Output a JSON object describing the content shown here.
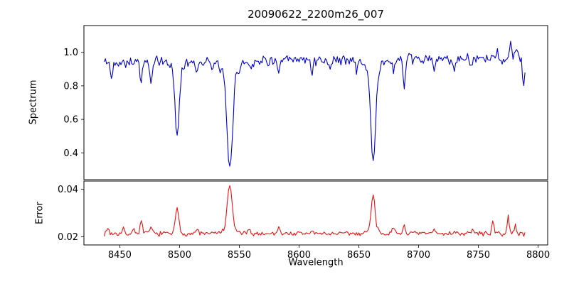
{
  "figure": {
    "title": "20090622_2200m26_007"
  },
  "chart_data": [
    {
      "type": "line",
      "role": "spectrum",
      "title": "20090622_2200m26_007",
      "ylabel": "Spectrum",
      "line_color": "#0000cc",
      "legend": "none",
      "grid": false,
      "xlim": [
        8420,
        8808
      ],
      "ylim": [
        0.24,
        1.16
      ],
      "ytick_values": [
        0.4,
        0.6,
        0.8,
        1.0
      ],
      "ytick_labels": [
        "0.4",
        "0.6",
        "0.8",
        "1.0"
      ],
      "x_start": 8437,
      "x_end": 8789,
      "x_step": 1.0,
      "seed": 42,
      "continuum": 0.952,
      "slope": 6e-05,
      "slope_ref": 8600,
      "noise_amplitude": 0.038,
      "absorption_lines": [
        {
          "c": 8498,
          "d": 0.4,
          "w": 1.6
        },
        {
          "c": 8498,
          "d": 0.06,
          "w": 4.0
        },
        {
          "c": 8542,
          "d": 0.55,
          "w": 2.2
        },
        {
          "c": 8542,
          "d": 0.1,
          "w": 6.0
        },
        {
          "c": 8662,
          "d": 0.52,
          "w": 1.9
        },
        {
          "c": 8662,
          "d": 0.09,
          "w": 5.0
        },
        {
          "c": 8443,
          "d": 0.1,
          "w": 1.0
        },
        {
          "c": 8468,
          "d": 0.12,
          "w": 0.9
        },
        {
          "c": 8476,
          "d": 0.13,
          "w": 1.1
        },
        {
          "c": 8514,
          "d": 0.07,
          "w": 0.9
        },
        {
          "c": 8527,
          "d": 0.06,
          "w": 0.8
        },
        {
          "c": 8560,
          "d": 0.05,
          "w": 0.8
        },
        {
          "c": 8583,
          "d": 0.09,
          "w": 1.0
        },
        {
          "c": 8611,
          "d": 0.06,
          "w": 0.9
        },
        {
          "c": 8625,
          "d": 0.05,
          "w": 0.8
        },
        {
          "c": 8648,
          "d": 0.06,
          "w": 0.9
        },
        {
          "c": 8679,
          "d": 0.08,
          "w": 0.9
        },
        {
          "c": 8688,
          "d": 0.16,
          "w": 1.0
        },
        {
          "c": 8713,
          "d": 0.07,
          "w": 0.9
        },
        {
          "c": 8730,
          "d": 0.06,
          "w": 0.9
        },
        {
          "c": 8744,
          "d": 0.07,
          "w": 0.9
        },
        {
          "c": 8788,
          "d": 0.16,
          "w": 0.9
        }
      ],
      "peaks": [
        {
          "c": 8766,
          "a": 0.05,
          "w": 0.7
        },
        {
          "c": 8777,
          "a": 0.1,
          "w": 1.0
        },
        {
          "c": 8782,
          "a": 0.06,
          "w": 0.8
        }
      ],
      "features": [
        {
          "wavelength": 8498,
          "min_flux": 0.49
        },
        {
          "wavelength": 8542,
          "min_flux": 0.31
        },
        {
          "wavelength": 8662,
          "min_flux": 0.34
        }
      ]
    },
    {
      "type": "line",
      "role": "error",
      "ylabel": "Error",
      "xlabel": "Wavelength",
      "line_color": "#ee1111",
      "legend": "none",
      "grid": false,
      "xlim": [
        8420,
        8808
      ],
      "ylim": [
        0.0165,
        0.0435
      ],
      "ytick_values": [
        0.02,
        0.04
      ],
      "ytick_labels": [
        "0.02",
        "0.04"
      ],
      "xtick_values": [
        8450,
        8500,
        8550,
        8600,
        8650,
        8700,
        8750,
        8800
      ],
      "xtick_labels": [
        "8450",
        "8500",
        "8550",
        "8600",
        "8650",
        "8700",
        "8750",
        "8800"
      ],
      "x_start": 8437,
      "x_end": 8789,
      "x_step": 1.0,
      "seed": 7,
      "baseline": 0.0213,
      "noise_amplitude": 0.0012,
      "peaks": [
        {
          "c": 8432,
          "a": 0.004,
          "w": 1.0
        },
        {
          "c": 8440,
          "a": 0.0025,
          "w": 0.9
        },
        {
          "c": 8453,
          "a": 0.002,
          "w": 0.8
        },
        {
          "c": 8462,
          "a": 0.0025,
          "w": 0.8
        },
        {
          "c": 8468,
          "a": 0.005,
          "w": 1.0
        },
        {
          "c": 8476,
          "a": 0.003,
          "w": 0.9
        },
        {
          "c": 8498,
          "a": 0.0105,
          "w": 1.4
        },
        {
          "c": 8515,
          "a": 0.002,
          "w": 0.9
        },
        {
          "c": 8542,
          "a": 0.0185,
          "w": 1.9
        },
        {
          "c": 8542,
          "a": 0.002,
          "w": 5.0
        },
        {
          "c": 8558,
          "a": 0.0015,
          "w": 0.8
        },
        {
          "c": 8583,
          "a": 0.003,
          "w": 1.0
        },
        {
          "c": 8611,
          "a": 0.0015,
          "w": 0.8
        },
        {
          "c": 8662,
          "a": 0.015,
          "w": 1.5
        },
        {
          "c": 8662,
          "a": 0.002,
          "w": 4.0
        },
        {
          "c": 8679,
          "a": 0.002,
          "w": 0.9
        },
        {
          "c": 8688,
          "a": 0.0035,
          "w": 1.0
        },
        {
          "c": 8713,
          "a": 0.002,
          "w": 0.9
        },
        {
          "c": 8730,
          "a": 0.0015,
          "w": 0.8
        },
        {
          "c": 8745,
          "a": 0.002,
          "w": 0.9
        },
        {
          "c": 8762,
          "a": 0.0055,
          "w": 0.8
        },
        {
          "c": 8775,
          "a": 0.0075,
          "w": 0.8
        },
        {
          "c": 8781,
          "a": 0.0045,
          "w": 0.7
        }
      ],
      "features": [
        {
          "wavelength": 8498,
          "max_error": 0.033
        },
        {
          "wavelength": 8542,
          "max_error": 0.041
        },
        {
          "wavelength": 8662,
          "max_error": 0.037
        }
      ]
    }
  ]
}
